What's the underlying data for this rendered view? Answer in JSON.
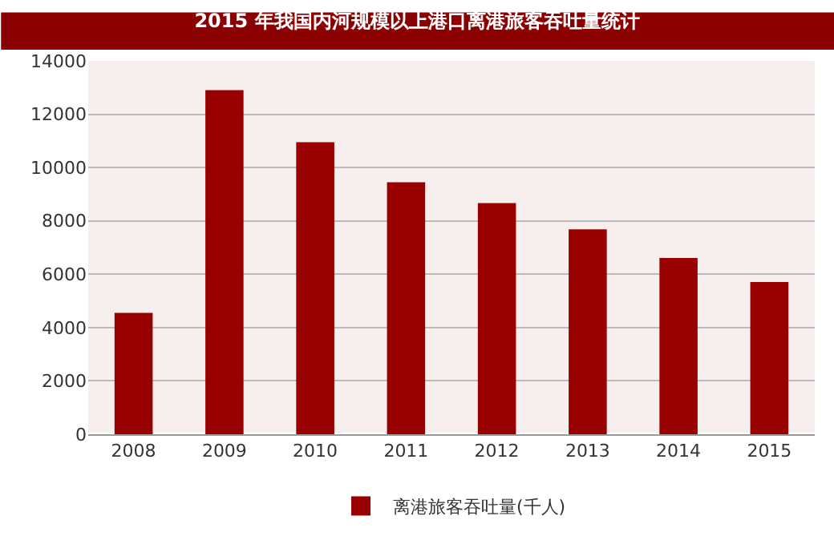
{
  "chart_data": {
    "type": "bar",
    "title": "2015 年我国内河规模以上港口离港旅客吞吐量统计",
    "categories": [
      "2008",
      "2009",
      "2010",
      "2011",
      "2012",
      "2013",
      "2014",
      "2015"
    ],
    "series": [
      {
        "name": "离港旅客吞吐量(千人)",
        "color": "#990000",
        "values": [
          4550,
          12900,
          10950,
          9450,
          8670,
          7680,
          6610,
          5710
        ]
      }
    ],
    "ylim": [
      0,
      14000
    ],
    "yticks": [
      0,
      2000,
      4000,
      6000,
      8000,
      10000,
      12000,
      14000
    ],
    "grid": "y",
    "legend": "bottom"
  }
}
